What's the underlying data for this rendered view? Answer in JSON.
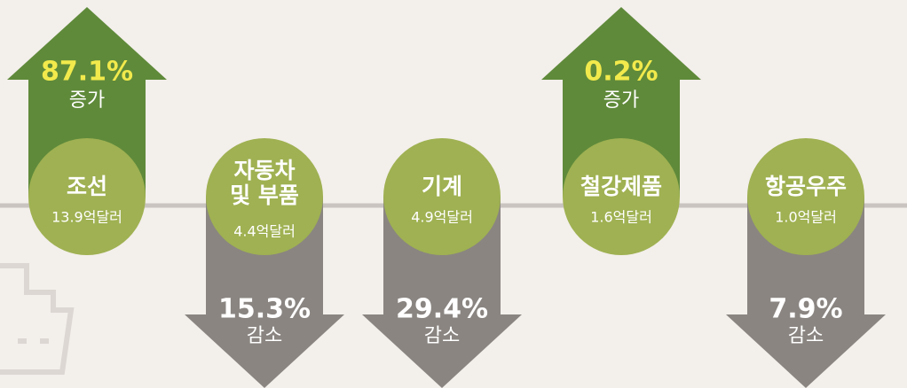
{
  "items": [
    {
      "name": "조선",
      "amount": "13.9억달러",
      "change": "87.1%",
      "direction": "증가"
    },
    {
      "name_lines": [
        "자동차",
        "및 부품"
      ],
      "amount": "4.4억달러",
      "change": "15.3%",
      "direction": "감소"
    },
    {
      "name": "기계",
      "amount": "4.9억달러",
      "change": "29.4%",
      "direction": "감소"
    },
    {
      "name": "철강제품",
      "amount": "1.6억달러",
      "change": "0.2%",
      "direction": "증가"
    },
    {
      "name": "항공우주",
      "amount": "1.0억달러",
      "change": "7.9%",
      "direction": "감소"
    }
  ]
}
